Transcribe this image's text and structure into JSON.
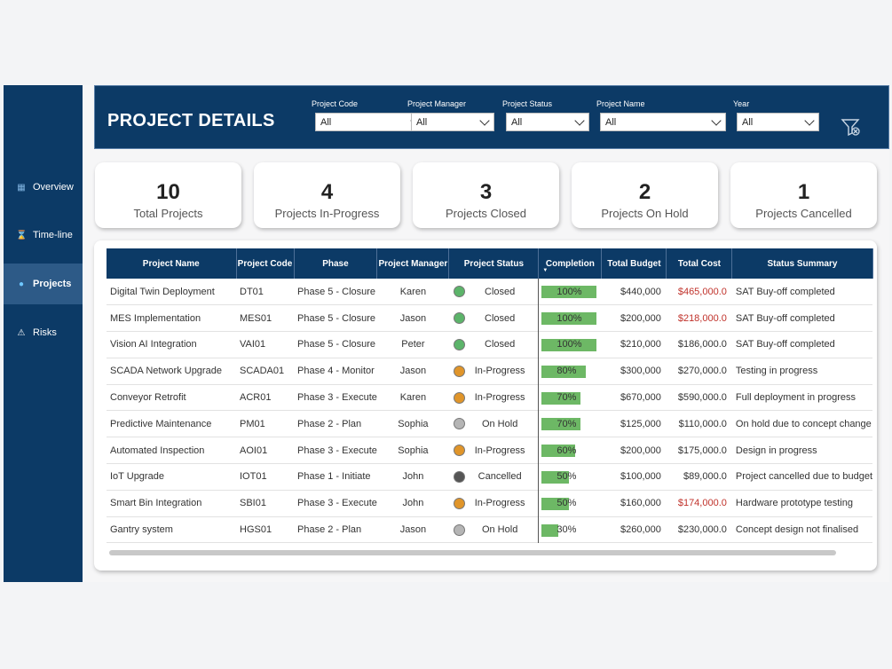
{
  "sidebar": {
    "items": [
      {
        "label": "Overview",
        "icon": "▦"
      },
      {
        "label": "Time-line",
        "icon": "⌛"
      },
      {
        "label": "Projects",
        "icon": "●"
      },
      {
        "label": "Risks",
        "icon": "⚠"
      }
    ]
  },
  "header": {
    "title": "PROJECT DETAILS",
    "filters": [
      {
        "label": "Project Code",
        "value": "All"
      },
      {
        "label": "Project Manager",
        "value": "All"
      },
      {
        "label": "Project Status",
        "value": "All"
      },
      {
        "label": "Project Name",
        "value": "All"
      },
      {
        "label": "Year",
        "value": "All"
      }
    ]
  },
  "cards": [
    {
      "value": "10",
      "label": "Total Projects"
    },
    {
      "value": "4",
      "label": "Projects In-Progress"
    },
    {
      "value": "3",
      "label": "Projects Closed"
    },
    {
      "value": "2",
      "label": "Projects On Hold"
    },
    {
      "value": "1",
      "label": "Projects Cancelled"
    }
  ],
  "table": {
    "columns": [
      "Project Name",
      "Project Code",
      "Phase",
      "Project Manager",
      "Project Status",
      "Completion",
      "Total Budget",
      "Total Cost",
      "Status Summary"
    ],
    "rows": [
      {
        "name": "Digital Twin Deployment",
        "code": "DT01",
        "phase": "Phase 5 - Closure",
        "manager": "Karen",
        "status": "Closed",
        "status_color": "#5cb46a",
        "completion": 100,
        "completion_label": "100%",
        "budget": "$440,000",
        "cost": "$465,000.0",
        "cost_over": true,
        "summary": "SAT Buy-off completed"
      },
      {
        "name": "MES Implementation",
        "code": "MES01",
        "phase": "Phase 5 - Closure",
        "manager": "Jason",
        "status": "Closed",
        "status_color": "#5cb46a",
        "completion": 100,
        "completion_label": "100%",
        "budget": "$200,000",
        "cost": "$218,000.0",
        "cost_over": true,
        "summary": "SAT Buy-off completed"
      },
      {
        "name": "Vision AI Integration",
        "code": "VAI01",
        "phase": "Phase 5 - Closure",
        "manager": "Peter",
        "status": "Closed",
        "status_color": "#5cb46a",
        "completion": 100,
        "completion_label": "100%",
        "budget": "$210,000",
        "cost": "$186,000.0",
        "cost_over": false,
        "summary": "SAT Buy-off completed"
      },
      {
        "name": "SCADA Network Upgrade",
        "code": "SCADA01",
        "phase": "Phase 4 - Monitor",
        "manager": "Jason",
        "status": "In-Progress",
        "status_color": "#e0952a",
        "completion": 80,
        "completion_label": "80%",
        "budget": "$300,000",
        "cost": "$270,000.0",
        "cost_over": false,
        "summary": "Testing in progress"
      },
      {
        "name": "Conveyor Retrofit",
        "code": "ACR01",
        "phase": "Phase 3 - Execute",
        "manager": "Karen",
        "status": "In-Progress",
        "status_color": "#e0952a",
        "completion": 70,
        "completion_label": "70%",
        "budget": "$670,000",
        "cost": "$590,000.0",
        "cost_over": false,
        "summary": "Full deployment in progress"
      },
      {
        "name": "Predictive Maintenance",
        "code": "PM01",
        "phase": "Phase 2 - Plan",
        "manager": "Sophia",
        "status": "On Hold",
        "status_color": "#b5b5b5",
        "completion": 70,
        "completion_label": "70%",
        "budget": "$125,000",
        "cost": "$110,000.0",
        "cost_over": false,
        "summary": "On hold due to concept change"
      },
      {
        "name": "Automated Inspection",
        "code": "AOI01",
        "phase": "Phase 3 - Execute",
        "manager": "Sophia",
        "status": "In-Progress",
        "status_color": "#e0952a",
        "completion": 60,
        "completion_label": "60%",
        "budget": "$200,000",
        "cost": "$175,000.0",
        "cost_over": false,
        "summary": "Design in progress"
      },
      {
        "name": "IoT Upgrade",
        "code": "IOT01",
        "phase": "Phase 1 - Initiate",
        "manager": "John",
        "status": "Cancelled",
        "status_color": "#555555",
        "completion": 50,
        "completion_label": "50%",
        "budget": "$100,000",
        "cost": "$89,000.0",
        "cost_over": false,
        "summary": "Project cancelled due to budget"
      },
      {
        "name": "Smart Bin Integration",
        "code": "SBI01",
        "phase": "Phase 3 - Execute",
        "manager": "John",
        "status": "In-Progress",
        "status_color": "#e0952a",
        "completion": 50,
        "completion_label": "50%",
        "budget": "$160,000",
        "cost": "$174,000.0",
        "cost_over": true,
        "summary": "Hardware prototype testing"
      },
      {
        "name": "Gantry system",
        "code": "HGS01",
        "phase": "Phase 2 - Plan",
        "manager": "Jason",
        "status": "On Hold",
        "status_color": "#b5b5b5",
        "completion": 30,
        "completion_label": "30%",
        "budget": "$260,000",
        "cost": "$230,000.0",
        "cost_over": false,
        "summary": "Concept design not finalised"
      }
    ]
  }
}
